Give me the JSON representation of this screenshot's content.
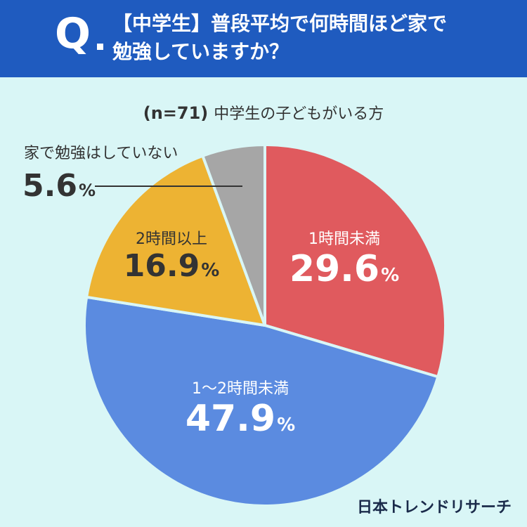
{
  "header": {
    "q_mark": "Q",
    "title_line1": "【中学生】普段平均で何時間ほど家で",
    "title_line2": "勉強していますか？"
  },
  "subtitle": {
    "n": "(n=71)",
    "text": "中学生の子どもがいる方"
  },
  "brand": "日本トレンドリサーチ",
  "chart_data": {
    "type": "pie",
    "title": "【中学生】普段平均で何時間ほど家で勉強していますか？",
    "sample": "(n=71) 中学生の子どもがいる方",
    "start": "12 o'clock, clockwise",
    "slices": [
      {
        "label": "1時間未満",
        "value": 29.6,
        "color": "#e05a5e"
      },
      {
        "label": "1〜2時間未満",
        "value": 47.9,
        "color": "#5b8be0"
      },
      {
        "label": "2時間以上",
        "value": 16.9,
        "color": "#edb333"
      },
      {
        "label": "家で勉強はしていない",
        "value": 5.6,
        "color": "#a6a6a6"
      }
    ],
    "unit": "%"
  }
}
